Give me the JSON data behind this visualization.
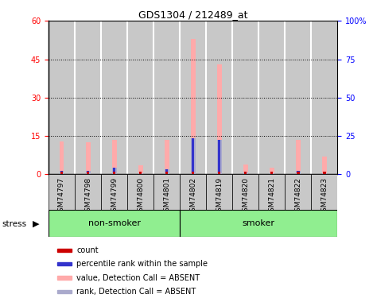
{
  "title": "GDS1304 / 212489_at",
  "samples": [
    "GSM74797",
    "GSM74798",
    "GSM74799",
    "GSM74800",
    "GSM74801",
    "GSM74802",
    "GSM74819",
    "GSM74820",
    "GSM74821",
    "GSM74822",
    "GSM74823"
  ],
  "count": [
    1,
    1,
    1,
    1,
    1,
    1,
    1,
    1,
    1,
    1,
    1
  ],
  "percentile_rank": [
    1.5,
    1.5,
    2.5,
    0.5,
    2.0,
    14.0,
    13.5,
    0.8,
    0.5,
    1.5,
    0.5
  ],
  "value_absent": [
    13.0,
    12.5,
    13.5,
    3.5,
    13.5,
    53.0,
    43.0,
    4.0,
    2.5,
    13.5,
    7.0
  ],
  "rank_absent": [
    1.5,
    1.5,
    2.5,
    0.5,
    2.0,
    14.0,
    13.5,
    0.8,
    0.5,
    1.5,
    0.5
  ],
  "left_ylim": [
    0,
    60
  ],
  "right_ylim": [
    0,
    100
  ],
  "left_yticks": [
    0,
    15,
    30,
    45,
    60
  ],
  "right_yticks": [
    0,
    25,
    50,
    75,
    100
  ],
  "right_yticklabels": [
    "0",
    "25",
    "50",
    "75",
    "100%"
  ],
  "color_count": "#cc0000",
  "color_rank": "#3333cc",
  "color_value_absent": "#ffaaaa",
  "color_rank_absent": "#aaaacc",
  "bar_bg_color": "#c8c8c8",
  "group_bar_color": "#90EE90",
  "non_smoker_count": 5,
  "smoker_count": 6,
  "legend_items": [
    {
      "label": "count",
      "color": "#cc0000"
    },
    {
      "label": "percentile rank within the sample",
      "color": "#3333cc"
    },
    {
      "label": "value, Detection Call = ABSENT",
      "color": "#ffaaaa"
    },
    {
      "label": "rank, Detection Call = ABSENT",
      "color": "#aaaacc"
    }
  ]
}
